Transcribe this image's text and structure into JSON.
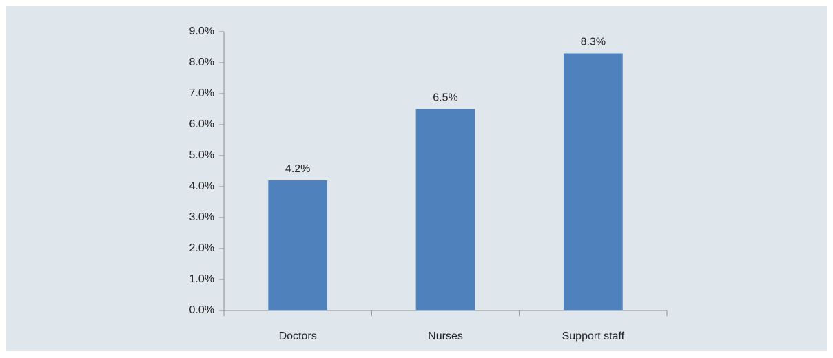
{
  "chart_data": {
    "type": "bar",
    "categories": [
      "Doctors",
      "Nurses",
      "Support staff"
    ],
    "values": [
      4.2,
      6.5,
      8.3
    ],
    "value_labels": [
      "4.2%",
      "6.5%",
      "8.3%"
    ],
    "color": "#4f81bd",
    "ylim": [
      0,
      9
    ],
    "yticks": [
      {
        "value": 0,
        "label": "0.0%"
      },
      {
        "value": 1,
        "label": "1.0%"
      },
      {
        "value": 2,
        "label": "2.0%"
      },
      {
        "value": 3,
        "label": "3.0%"
      },
      {
        "value": 4,
        "label": "4.0%"
      },
      {
        "value": 5,
        "label": "5.0%"
      },
      {
        "value": 6,
        "label": "6.0%"
      },
      {
        "value": 7,
        "label": "7.0%"
      },
      {
        "value": 8,
        "label": "8.0%"
      },
      {
        "value": 9,
        "label": "9.0%"
      }
    ],
    "grid": false
  }
}
